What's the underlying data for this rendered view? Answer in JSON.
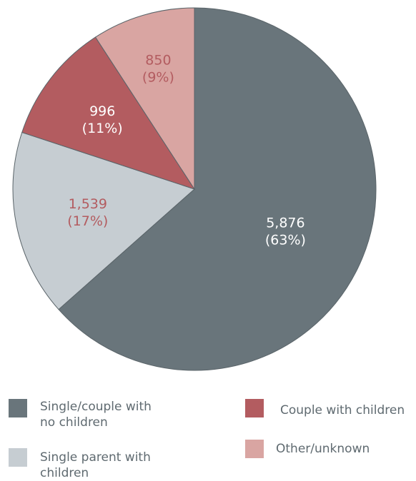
{
  "chart_data": {
    "type": "pie",
    "slices": [
      {
        "label": "Single/couple with no children",
        "value": 5876,
        "value_text": "5,876",
        "percent_text": "(63%)",
        "color": "#69757b",
        "label_color": "#ffffff"
      },
      {
        "label": "Single parent with children",
        "value": 1539,
        "value_text": "1,539",
        "percent_text": "(17%)",
        "color": "#c6cdd2",
        "label_color": "#b35c60"
      },
      {
        "label": "Couple with children",
        "value": 996,
        "value_text": "996",
        "percent_text": "(11%)",
        "color": "#b35c60",
        "label_color": "#ffffff"
      },
      {
        "label": "Other/unknown",
        "value": 850,
        "value_text": "850",
        "percent_text": "(9%)",
        "color": "#d9a5a2",
        "label_color": "#b35c60"
      }
    ],
    "start_position": "12 o'clock",
    "direction": "clockwise",
    "legend_placement": "bottom"
  },
  "legend": {
    "items": [
      {
        "text": "Single/couple with\nno children",
        "color": "#69757b"
      },
      {
        "text": "Couple with children",
        "color": "#b35c60"
      },
      {
        "text": "Single parent with\nchildren",
        "color": "#c6cdd2"
      },
      {
        "text": "Other/unknown",
        "color": "#d9a5a2"
      }
    ]
  }
}
